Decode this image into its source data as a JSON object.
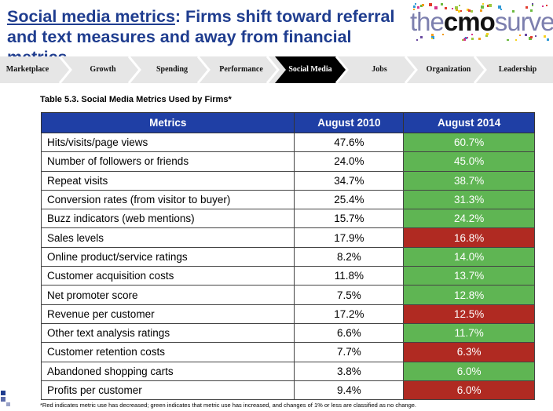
{
  "header": {
    "title_highlight": "Social media metrics",
    "title_rest": ": Firms shift toward referral and text measures and away from financial metrics",
    "logo_thin": "the",
    "logo_bold": "cmo",
    "logo_end": "survey"
  },
  "nav": {
    "items": [
      "Marketplace",
      "Growth",
      "Spending",
      "Performance",
      "Social Media",
      "Jobs",
      "Organization",
      "Leadership"
    ],
    "active": "Social Media"
  },
  "table": {
    "caption": "Table 5.3.  Social Media Metrics Used by Firms*",
    "headers": [
      "Metrics",
      "August 2010",
      "August 2014"
    ],
    "rows": [
      {
        "metric": "Hits/visits/page views",
        "y2010": "47.6%",
        "y2014": "60.7%",
        "status": "increased"
      },
      {
        "metric": "Number of followers or friends",
        "y2010": "24.0%",
        "y2014": "45.0%",
        "status": "increased"
      },
      {
        "metric": "Repeat visits",
        "y2010": "34.7%",
        "y2014": "38.7%",
        "status": "increased"
      },
      {
        "metric": "Conversion rates (from visitor to buyer)",
        "y2010": "25.4%",
        "y2014": "31.3%",
        "status": "increased"
      },
      {
        "metric": "Buzz indicators (web mentions)",
        "y2010": "15.7%",
        "y2014": "24.2%",
        "status": "increased"
      },
      {
        "metric": "Sales levels",
        "y2010": "17.9%",
        "y2014": "16.8%",
        "status": "decreased"
      },
      {
        "metric": "Online product/service ratings",
        "y2010": "8.2%",
        "y2014": "14.0%",
        "status": "increased"
      },
      {
        "metric": "Customer acquisition costs",
        "y2010": "11.8%",
        "y2014": "13.7%",
        "status": "increased"
      },
      {
        "metric": "Net promoter score",
        "y2010": "7.5%",
        "y2014": "12.8%",
        "status": "increased"
      },
      {
        "metric": "Revenue per customer",
        "y2010": "17.2%",
        "y2014": "12.5%",
        "status": "decreased"
      },
      {
        "metric": "Other text analysis ratings",
        "y2010": "6.6%",
        "y2014": "11.7%",
        "status": "increased"
      },
      {
        "metric": "Customer retention costs",
        "y2010": "7.7%",
        "y2014": "6.3%",
        "status": "decreased"
      },
      {
        "metric": "Abandoned shopping carts",
        "y2010": "3.8%",
        "y2014": "6.0%",
        "status": "increased"
      },
      {
        "metric": "Profits per customer",
        "y2010": "9.4%",
        "y2014": "6.0%",
        "status": "decreased"
      }
    ],
    "footnote": "*Red indicates metric use has decreased; green  indicates that metric use has increased, and changes of 1% or less are classified as no change."
  },
  "colors": {
    "title": "#1f3d8f",
    "header_bg": "#1f3fa5",
    "increased": "#5fb553",
    "decreased": "#b02a22",
    "nav_active": "#000000",
    "nav_bg": "#e6e6e6"
  }
}
